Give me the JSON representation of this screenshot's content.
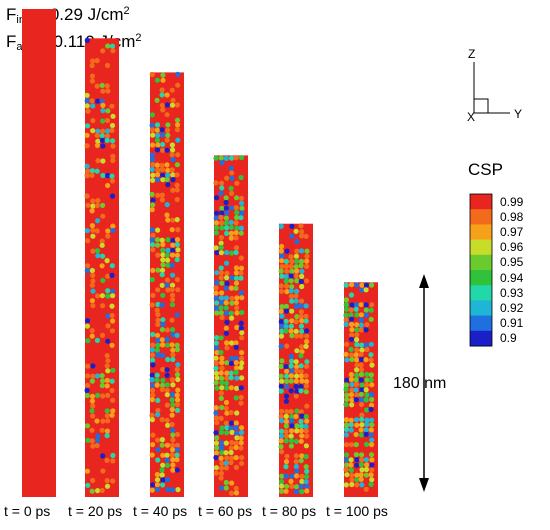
{
  "fluence": {
    "inc_symbol": "F",
    "inc_sub": "inc",
    "inc_value": " = 0.29 J/cm",
    "inc_exp": "2",
    "abs_symbol": "F",
    "abs_sub": "abs",
    "abs_value": " = 0.119 J/cm",
    "abs_exp": "2"
  },
  "axes": {
    "z": "Z",
    "x": "X",
    "y": "Y"
  },
  "csp_legend": {
    "title": "CSP",
    "labels": [
      "0.99",
      "0.98",
      "0.97",
      "0.96",
      "0.95",
      "0.94",
      "0.93",
      "0.92",
      "0.91",
      "0.9"
    ],
    "colors": [
      "#e8251f",
      "#f26a1b",
      "#f7a01a",
      "#c8dc2a",
      "#6acb2f",
      "#2fc23a",
      "#22d7a8",
      "#1fb6d6",
      "#1f6fe0",
      "#1a1fc8"
    ]
  },
  "scale_bar": {
    "label": "180 nm"
  },
  "snapshots": [
    {
      "label": "t =  0 ps",
      "disorder": 0.0,
      "height": 0.0
    },
    {
      "label": "t = 20 ps",
      "disorder": 0.3,
      "height": 0.06
    },
    {
      "label": "t = 40 ps",
      "disorder": 0.5,
      "height": 0.13
    },
    {
      "label": "t = 60 ps",
      "disorder": 0.62,
      "height": 0.3
    },
    {
      "label": "t = 80 ps",
      "disorder": 0.7,
      "height": 0.44
    },
    {
      "label": "t = 100 ps",
      "disorder": 0.74,
      "height": 0.56
    }
  ]
}
